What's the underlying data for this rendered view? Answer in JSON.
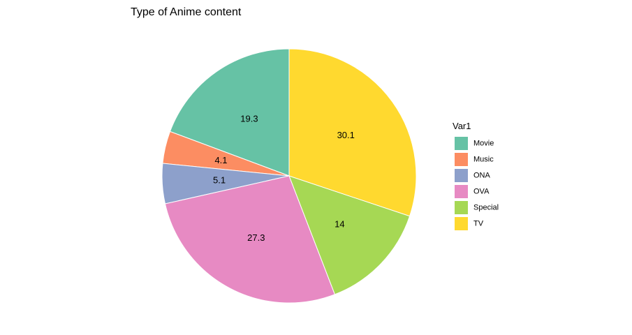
{
  "chart_data": {
    "type": "pie",
    "title": "Type of Anime content",
    "legend_title": "Var1",
    "legend_position": "right",
    "categories": [
      "Movie",
      "Music",
      "ONA",
      "OVA",
      "Special",
      "TV"
    ],
    "values": [
      19.3,
      4.1,
      5.1,
      27.3,
      14,
      30.1
    ],
    "labels": [
      "19.3",
      "4.1",
      "5.1",
      "27.3",
      "14",
      "30.1"
    ],
    "colors": [
      "#66c2a5",
      "#fc8d62",
      "#8da0cb",
      "#e78ac3",
      "#a6d854",
      "#ffd92f"
    ],
    "direction": "counterclockwise",
    "start_angle": "top"
  }
}
